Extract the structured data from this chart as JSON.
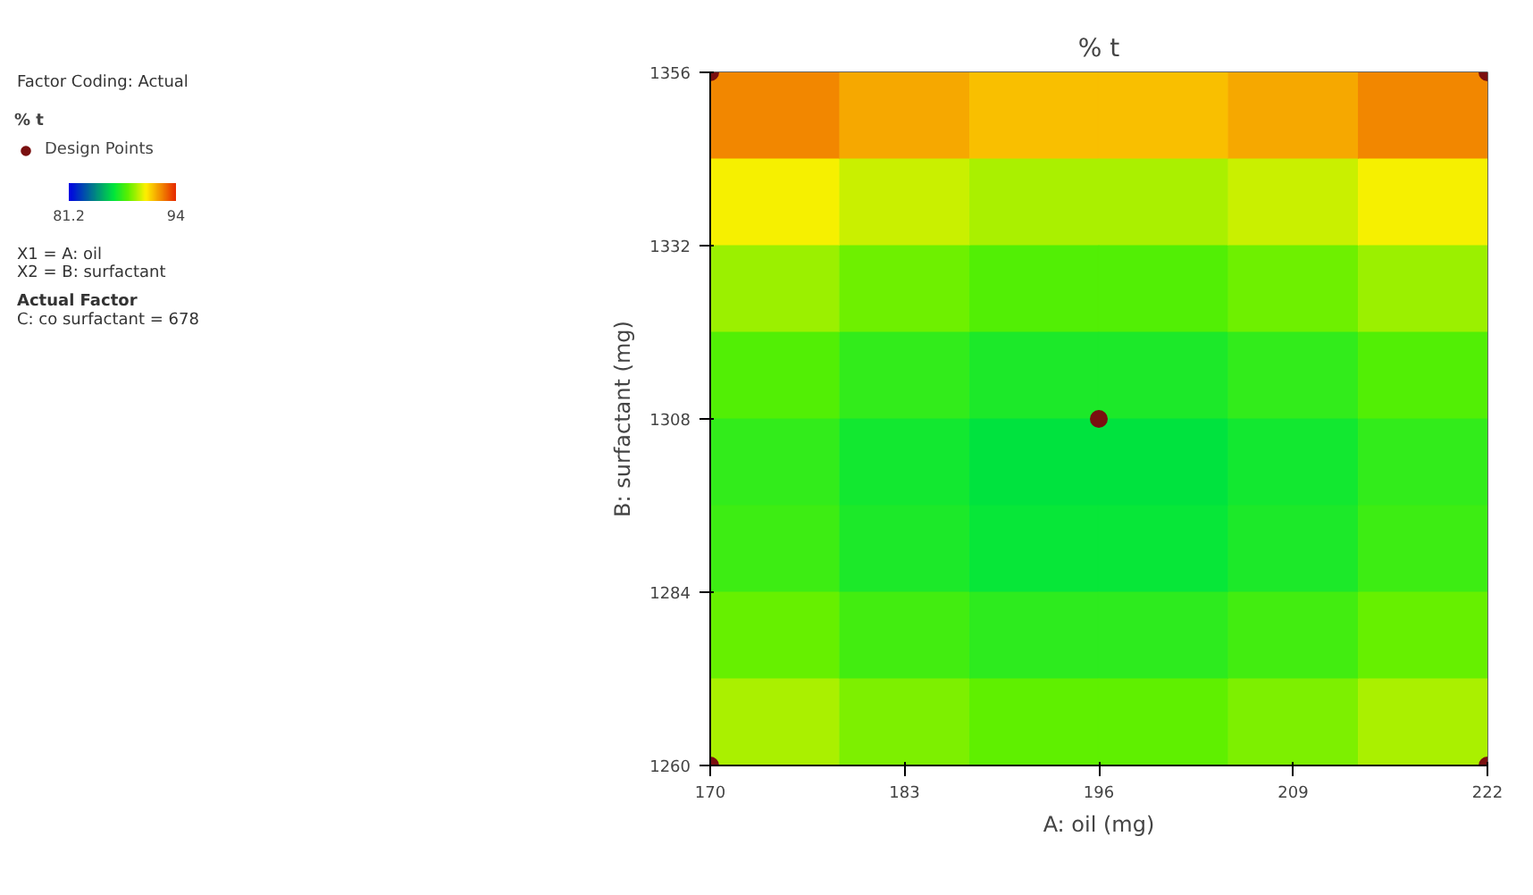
{
  "chart_data": [
    {
      "type": "heatmap",
      "title": "% t",
      "xlabel": "A: oil (mg)",
      "ylabel": "B: surfactant (mg)",
      "x": [
        174.3,
        183,
        191.7,
        200.3,
        209,
        217.7
      ],
      "y": [
        1350,
        1338,
        1326,
        1314,
        1302,
        1290,
        1278,
        1266
      ],
      "xlim": [
        170,
        222
      ],
      "xticks": [
        170,
        183,
        196,
        209,
        222
      ],
      "ylim": [
        1260,
        1356
      ],
      "yticks": [
        1260,
        1284,
        1308,
        1332,
        1356
      ],
      "cells": [
        [
          92.3,
          91.7,
          91.3,
          91.3,
          91.7,
          92.3
        ],
        [
          90.3,
          89.7,
          89.3,
          89.3,
          89.7,
          90.3
        ],
        [
          89.1,
          88.5,
          88.1,
          88.1,
          88.5,
          89.1
        ],
        [
          88.1,
          87.5,
          87.1,
          87.1,
          87.5,
          88.1
        ],
        [
          87.5,
          86.9,
          86.5,
          86.5,
          86.9,
          87.5
        ],
        [
          87.7,
          87.1,
          86.7,
          86.7,
          87.1,
          87.7
        ],
        [
          88.4,
          87.8,
          87.4,
          87.4,
          87.8,
          88.4
        ],
        [
          89.3,
          88.7,
          88.3,
          88.3,
          88.7,
          89.3
        ]
      ],
      "clim": [
        81.2,
        94
      ],
      "cticks": [
        81.2,
        94
      ],
      "legend_title": "% t",
      "legend": "left",
      "series": [
        {
          "type": "scatter",
          "name": "Design Points",
          "color": "#7a1010",
          "marker": "circle",
          "x": [
            170,
            222,
            170,
            222,
            196
          ],
          "values": [
            1356,
            1356,
            1260,
            1260,
            1308
          ]
        }
      ],
      "annotations": [
        "Factor Coding: Actual",
        "X1 = A: oil",
        "X2 = B: surfactant",
        "Actual Factor",
        "C: co surfactant = 678"
      ]
    }
  ]
}
